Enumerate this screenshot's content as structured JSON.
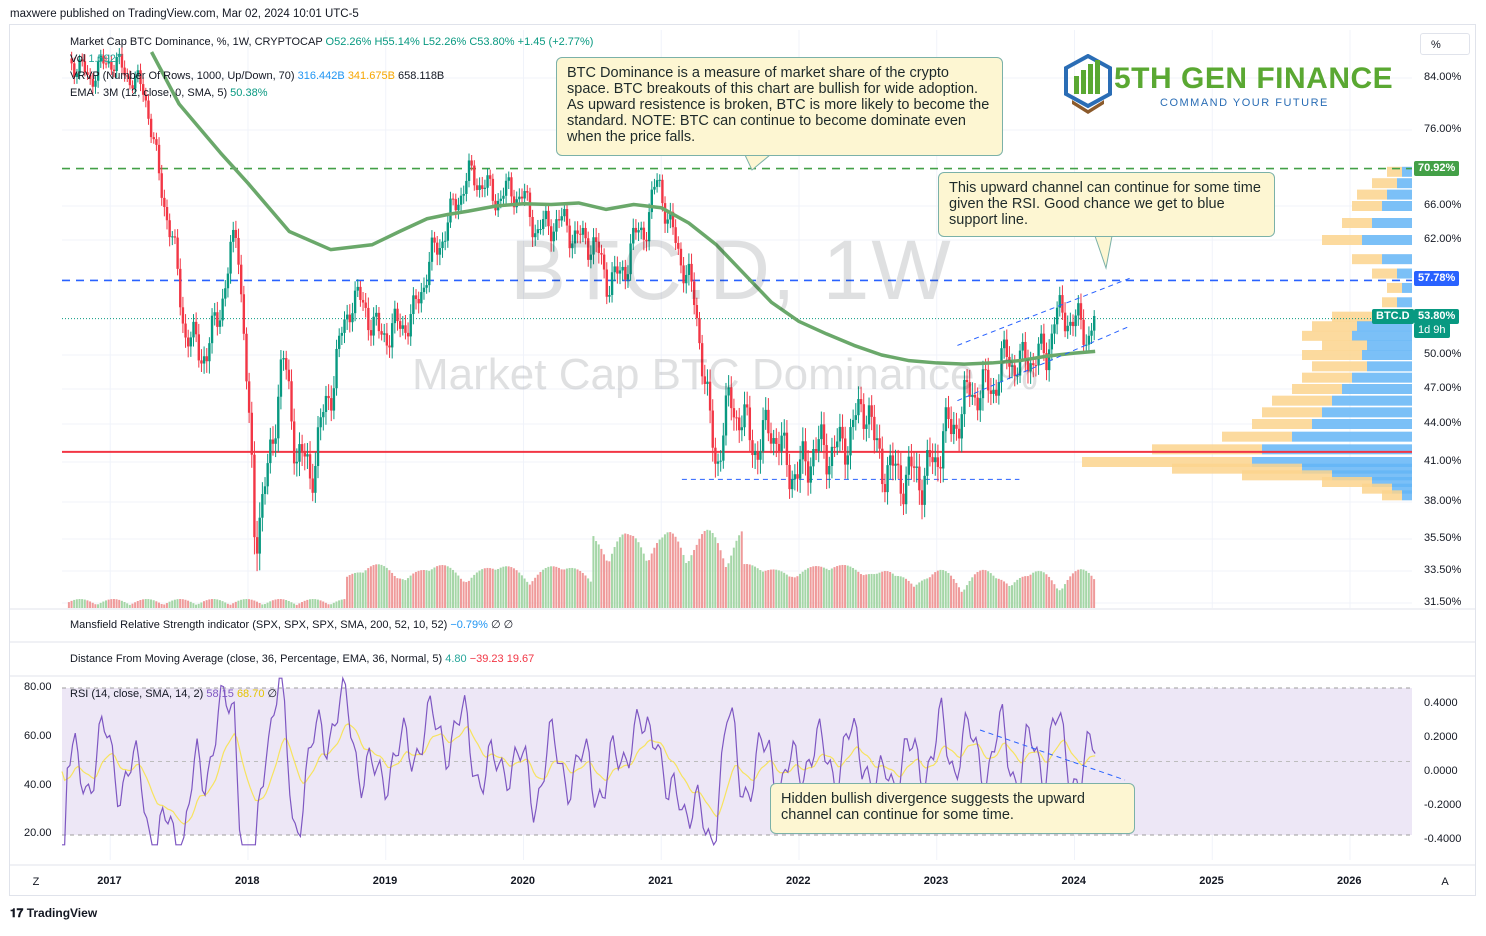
{
  "header": {
    "published": "maxwere published on TradingView.com, Mar 02, 2024 10:01 UTC-5"
  },
  "legend": {
    "main_name": "Market Cap BTC Dominance, %, 1W, CRYPTOCAP",
    "o": "O52.26%",
    "h": "H55.14%",
    "l": "L52.26%",
    "c": "C53.80%",
    "chg": "+1.45 (+2.77%)",
    "vol_label": "Vol",
    "vol_value": "1.592T",
    "vrvp_label": "VRVP (Number Of Rows, 1000, Up/Down, 70)",
    "vrvp_up": "316.442B",
    "vrvp_down": "341.675B",
    "vrvp_total": "658.118B",
    "ema_label": "EMA · 3M (12, close, 0, SMA, 5)",
    "ema_value": "50.38%",
    "mansfield_label": "Mansfield Relative Strength indicator (SPX, SPX, SPX, SMA, 200, 52, 10, 52)",
    "mansfield_value": "−0.79%",
    "mansfield_nan": "∅  ∅",
    "dma_label": "Distance From Moving Average (close, 36, Percentage, EMA, 36, Normal, 5)",
    "dma_v1": "4.80",
    "dma_v2": "−39.23",
    "dma_v3": "19.67",
    "rsi_label": "RSI (14, close, SMA, 14, 2)",
    "rsi_value": "58.15",
    "rsi_ma": "68.70",
    "rsi_nan": "∅"
  },
  "scale_button": "%",
  "watermark": {
    "symbol": "BTC.D, 1W",
    "name": "Market Cap BTC Dominance, %"
  },
  "logo": {
    "title": "5TH GEN FINANCE",
    "subtitle": "COMMAND YOUR FUTURE"
  },
  "notes": {
    "dominance": "BTC Dominance is a measure of market share of the crypto space.  BTC breakouts of this chart are bullish for wide adoption.  As upward resistence is broken, BTC is more likely to become the standard.  NOTE: BTC can continue to become dominate even when the price falls.",
    "channel": "This upward channel can continue for some time given the RSI.  Good chance we get to blue support line.",
    "divergence": "Hidden bullish divergence suggests the upward channel can continue for some time."
  },
  "tags": {
    "green_level": "70.92%",
    "blue_level": "57.78%",
    "symbol": "BTC.D",
    "last": "53.80%",
    "countdown": "1d 9h"
  },
  "colors": {
    "up": "#089981",
    "down": "#f23645",
    "ema": "#6aa86a",
    "green_line": "#43a047",
    "blue_line": "#2962ff",
    "red_line": "#f23645",
    "rsi": "#7e57c2",
    "rsi_ma": "#f7e35f",
    "rsi_band": "#ede7f6"
  },
  "bottom": {
    "brand": "TradingView",
    "z_button": "Z",
    "a_button": "A"
  },
  "chart_data": {
    "type": "candlestick",
    "title": "Market Cap BTC Dominance, %, 1W, CRYPTOCAP",
    "price_ticks": [
      "84.00%",
      "76.00%",
      "66.00%",
      "62.00%",
      "50.00%",
      "47.00%",
      "44.00%",
      "41.00%",
      "38.00%",
      "35.50%",
      "33.50%",
      "31.50%"
    ],
    "price_tick_values": [
      84,
      76,
      66,
      62,
      50,
      47,
      44,
      41,
      38,
      35.5,
      33.5,
      31.5
    ],
    "x_ticks": [
      "2017",
      "2018",
      "2019",
      "2020",
      "2021",
      "2022",
      "2023",
      "2024",
      "2025",
      "2026"
    ],
    "x_tick_values": [
      2017,
      2018,
      2019,
      2020,
      2021,
      2022,
      2023,
      2024,
      2025,
      2026
    ],
    "x_range": [
      2016.65,
      2026.45
    ],
    "horizontal_levels": [
      {
        "value": 70.92,
        "style": "dashed",
        "color": "green"
      },
      {
        "value": 57.78,
        "style": "dashed",
        "color": "blue"
      },
      {
        "value": 41.8,
        "style": "solid",
        "color": "red"
      }
    ],
    "close_series": [
      [
        2016.7,
        87
      ],
      [
        2016.85,
        84
      ],
      [
        2017.0,
        87
      ],
      [
        2017.15,
        84
      ],
      [
        2017.25,
        82
      ],
      [
        2017.35,
        70
      ],
      [
        2017.45,
        62
      ],
      [
        2017.55,
        52
      ],
      [
        2017.7,
        50
      ],
      [
        2017.85,
        58
      ],
      [
        2017.92,
        64
      ],
      [
        2018.0,
        45
      ],
      [
        2018.05,
        36
      ],
      [
        2018.15,
        40
      ],
      [
        2018.25,
        50
      ],
      [
        2018.35,
        42
      ],
      [
        2018.45,
        40
      ],
      [
        2018.6,
        47
      ],
      [
        2018.75,
        56
      ],
      [
        2018.85,
        55
      ],
      [
        2018.95,
        52
      ],
      [
        2019.1,
        53
      ],
      [
        2019.2,
        54
      ],
      [
        2019.3,
        59
      ],
      [
        2019.4,
        62
      ],
      [
        2019.5,
        66
      ],
      [
        2019.6,
        70
      ],
      [
        2019.7,
        69
      ],
      [
        2019.8,
        67
      ],
      [
        2019.9,
        68
      ],
      [
        2020.0,
        67
      ],
      [
        2020.1,
        63
      ],
      [
        2020.2,
        64
      ],
      [
        2020.3,
        64
      ],
      [
        2020.4,
        62
      ],
      [
        2020.5,
        62
      ],
      [
        2020.6,
        58
      ],
      [
        2020.7,
        58
      ],
      [
        2020.8,
        62
      ],
      [
        2020.9,
        64
      ],
      [
        2020.98,
        70
      ],
      [
        2021.05,
        64
      ],
      [
        2021.15,
        60
      ],
      [
        2021.25,
        55
      ],
      [
        2021.35,
        44
      ],
      [
        2021.4,
        41
      ],
      [
        2021.5,
        46
      ],
      [
        2021.6,
        44
      ],
      [
        2021.7,
        42
      ],
      [
        2021.8,
        44
      ],
      [
        2021.9,
        41
      ],
      [
        2022.0,
        40
      ],
      [
        2022.1,
        42
      ],
      [
        2022.2,
        42
      ],
      [
        2022.3,
        42
      ],
      [
        2022.4,
        44
      ],
      [
        2022.5,
        46
      ],
      [
        2022.55,
        42
      ],
      [
        2022.6,
        41
      ],
      [
        2022.7,
        40
      ],
      [
        2022.8,
        40
      ],
      [
        2022.9,
        40
      ],
      [
        2023.0,
        41
      ],
      [
        2023.05,
        44
      ],
      [
        2023.1,
        43
      ],
      [
        2023.2,
        46
      ],
      [
        2023.3,
        47
      ],
      [
        2023.4,
        47
      ],
      [
        2023.5,
        50
      ],
      [
        2023.6,
        49
      ],
      [
        2023.7,
        50
      ],
      [
        2023.8,
        50
      ],
      [
        2023.85,
        54
      ],
      [
        2023.95,
        54
      ],
      [
        2024.05,
        53
      ],
      [
        2024.1,
        52
      ],
      [
        2024.15,
        53.8
      ]
    ],
    "ema_series": [
      [
        2017.3,
        88
      ],
      [
        2017.5,
        80
      ],
      [
        2017.8,
        73
      ],
      [
        2018.0,
        69
      ],
      [
        2018.3,
        63
      ],
      [
        2018.6,
        61
      ],
      [
        2018.9,
        61.5
      ],
      [
        2019.1,
        63
      ],
      [
        2019.3,
        64.5
      ],
      [
        2019.45,
        65
      ],
      [
        2019.6,
        65.4
      ],
      [
        2019.8,
        66
      ],
      [
        2020.0,
        66.3
      ],
      [
        2020.2,
        66.2
      ],
      [
        2020.4,
        66.4
      ],
      [
        2020.6,
        65.6
      ],
      [
        2020.8,
        66.2
      ],
      [
        2021.0,
        65.8
      ],
      [
        2021.2,
        64
      ],
      [
        2021.4,
        61.5
      ],
      [
        2021.6,
        58.5
      ],
      [
        2021.8,
        55.5
      ],
      [
        2022.0,
        53.5
      ],
      [
        2022.2,
        52.2
      ],
      [
        2022.4,
        51
      ],
      [
        2022.6,
        50
      ],
      [
        2022.8,
        49.5
      ],
      [
        2023.0,
        49.3
      ],
      [
        2023.2,
        49.2
      ],
      [
        2023.4,
        49.3
      ],
      [
        2023.6,
        49.5
      ],
      [
        2023.8,
        49.9
      ],
      [
        2024.0,
        50.2
      ],
      [
        2024.15,
        50.38
      ]
    ],
    "channel": {
      "upper": [
        [
          2023.15,
          51
        ],
        [
          2024.4,
          58
        ]
      ],
      "lower": [
        [
          2023.15,
          46
        ],
        [
          2024.4,
          53
        ]
      ]
    },
    "volume_axis_range": [
      31.5,
      35.5
    ],
    "rsi": {
      "axis_left": [
        "80.00",
        "60.00",
        "40.00",
        "20.00"
      ],
      "axis_left_values": [
        80,
        60,
        40,
        20
      ],
      "axis_right": [
        "0.4000",
        "0.2000",
        "0.0000",
        "-0.2000",
        "-0.4000"
      ],
      "axis_right_values": [
        0.4,
        0.2,
        0,
        -0.2,
        -0.4
      ],
      "band_upper": 80,
      "band_middle": 50,
      "band_lower": 20,
      "last": 58.15,
      "ma_last": 68.7
    }
  }
}
